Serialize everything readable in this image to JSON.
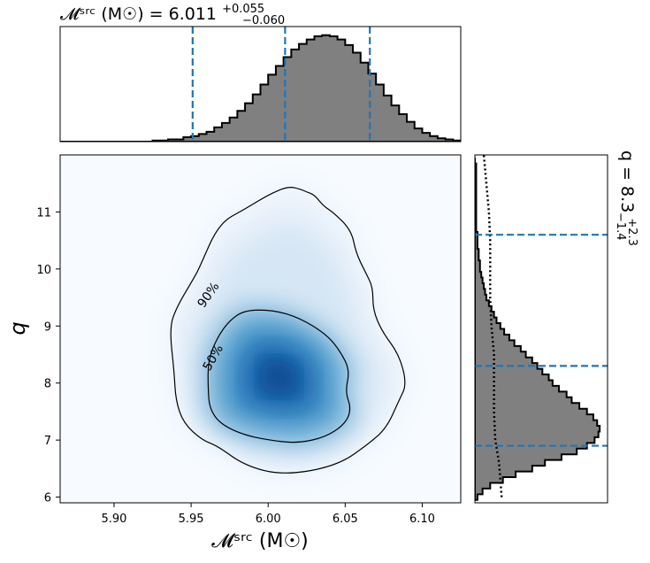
{
  "chart_data": [
    {
      "panel": "top-marginal",
      "type": "histogram",
      "title_text": "𝓜ˢʳᶜ (M☉) = 6.011",
      "title_sup": "+0.055",
      "title_sub": "−0.060",
      "xlim": [
        5.865,
        6.125
      ],
      "quantile_lines_x": [
        5.951,
        6.011,
        6.066
      ],
      "bins_x0": 5.865,
      "bin_width": 0.005,
      "counts": [
        0,
        0,
        0,
        0,
        0,
        0,
        0,
        0,
        0,
        0,
        0,
        0,
        0.01,
        0.01,
        0.02,
        0.02,
        0.04,
        0.05,
        0.07,
        0.09,
        0.13,
        0.17,
        0.22,
        0.28,
        0.35,
        0.43,
        0.52,
        0.61,
        0.69,
        0.77,
        0.84,
        0.89,
        0.93,
        0.96,
        0.97,
        0.96,
        0.93,
        0.88,
        0.81,
        0.72,
        0.62,
        0.52,
        0.42,
        0.33,
        0.25,
        0.18,
        0.12,
        0.08,
        0.05,
        0.03,
        0.02,
        0.01
      ],
      "fill_color": "#808080",
      "line_color": "#1f77b4"
    },
    {
      "panel": "joint-density",
      "type": "heatmap",
      "xlabel": "𝓜ˢʳᶜ (M☉)",
      "ylabel": "q",
      "xlim": [
        5.865,
        6.125
      ],
      "ylim": [
        5.9,
        12.0
      ],
      "xticks": [
        "5.90",
        "5.95",
        "6.00",
        "6.05",
        "6.10"
      ],
      "xtick_values": [
        5.9,
        5.95,
        6.0,
        6.05,
        6.1
      ],
      "yticks": [
        "6",
        "7",
        "8",
        "9",
        "10",
        "11"
      ],
      "ytick_values": [
        6,
        7,
        8,
        9,
        10,
        11
      ],
      "peak": {
        "x": 6.007,
        "y": 8.1
      },
      "contours": [
        {
          "label": "50%",
          "label_pos": {
            "x": 5.964,
            "y": 8.45
          },
          "label_angle_deg": -60
        },
        {
          "label": "90%",
          "label_pos": {
            "x": 5.961,
            "y": 9.55
          },
          "label_angle_deg": -55
        }
      ],
      "contour_50": [
        [
          5.961,
          7.9
        ],
        [
          5.962,
          7.55
        ],
        [
          5.969,
          7.28
        ],
        [
          5.985,
          7.08
        ],
        [
          6.005,
          6.98
        ],
        [
          6.02,
          6.95
        ],
        [
          6.037,
          7.05
        ],
        [
          6.05,
          7.28
        ],
        [
          6.054,
          7.55
        ],
        [
          6.05,
          7.85
        ],
        [
          6.053,
          8.22
        ],
        [
          6.047,
          8.55
        ],
        [
          6.038,
          8.85
        ],
        [
          6.02,
          9.15
        ],
        [
          6.003,
          9.28
        ],
        [
          5.985,
          9.28
        ],
        [
          5.975,
          9.1
        ],
        [
          5.967,
          8.8
        ],
        [
          5.961,
          8.4
        ]
      ],
      "contour_90": [
        [
          5.945,
          7.3
        ],
        [
          5.957,
          7.0
        ],
        [
          5.967,
          6.9
        ],
        [
          5.985,
          6.55
        ],
        [
          6.01,
          6.38
        ],
        [
          6.045,
          6.55
        ],
        [
          6.066,
          6.95
        ],
        [
          6.077,
          7.22
        ],
        [
          6.085,
          7.7
        ],
        [
          6.09,
          7.98
        ],
        [
          6.085,
          8.5
        ],
        [
          6.074,
          8.9
        ],
        [
          6.068,
          9.28
        ],
        [
          6.068,
          9.68
        ],
        [
          6.063,
          9.95
        ],
        [
          6.057,
          10.28
        ],
        [
          6.054,
          10.68
        ],
        [
          6.042,
          11.0
        ],
        [
          6.036,
          11.1
        ],
        [
          6.03,
          11.3
        ],
        [
          6.025,
          11.35
        ],
        [
          6.021,
          11.4
        ],
        [
          6.013,
          11.45
        ],
        [
          6.0,
          11.3
        ],
        [
          5.985,
          11.05
        ],
        [
          5.968,
          10.8
        ],
        [
          5.955,
          10.0
        ],
        [
          5.952,
          9.85
        ],
        [
          5.94,
          9.3
        ],
        [
          5.936,
          8.95
        ],
        [
          5.939,
          8.2
        ],
        [
          5.94,
          7.7
        ]
      ],
      "colormap": "Blues"
    },
    {
      "panel": "right-marginal",
      "type": "histogram",
      "title_text": "q = 8.3",
      "title_sup": "+2.3",
      "title_sub": "−1.4",
      "ylim": [
        5.9,
        12.0
      ],
      "quantile_lines_y": [
        6.9,
        8.3,
        10.6
      ],
      "bins_y0": 5.95,
      "bin_width": 0.1,
      "counts": [
        0.02,
        0.06,
        0.12,
        0.22,
        0.32,
        0.45,
        0.55,
        0.68,
        0.8,
        0.88,
        0.94,
        0.97,
        0.98,
        0.96,
        0.93,
        0.88,
        0.82,
        0.76,
        0.72,
        0.66,
        0.61,
        0.58,
        0.53,
        0.49,
        0.45,
        0.4,
        0.36,
        0.31,
        0.27,
        0.23,
        0.2,
        0.17,
        0.15,
        0.13,
        0.11,
        0.09,
        0.08,
        0.07,
        0.06,
        0.05,
        0.04,
        0.04,
        0.03,
        0.03,
        0.02,
        0.02,
        0.02,
        0.01,
        0.01,
        0.01,
        0.01,
        0.01,
        0.01,
        0.01,
        0.01,
        0.01,
        0.01,
        0.01,
        0.01,
        0
      ],
      "prior_curve": [
        [
          6.0,
          0.21
        ],
        [
          6.3,
          0.2
        ],
        [
          6.6,
          0.19
        ],
        [
          7.0,
          0.16
        ],
        [
          7.5,
          0.15
        ],
        [
          8.0,
          0.15
        ],
        [
          8.5,
          0.15
        ],
        [
          9.0,
          0.13
        ],
        [
          9.5,
          0.12
        ],
        [
          10.0,
          0.12
        ],
        [
          10.5,
          0.12
        ],
        [
          11.0,
          0.11
        ],
        [
          11.5,
          0.09
        ],
        [
          12.0,
          0.07
        ]
      ],
      "fill_color": "#808080",
      "line_color": "#1f77b4"
    }
  ]
}
